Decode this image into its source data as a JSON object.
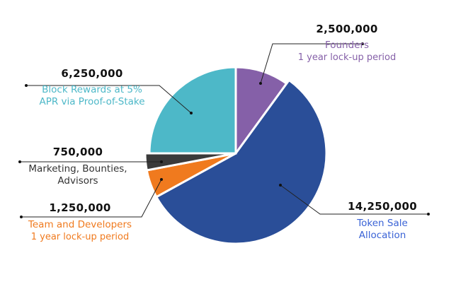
{
  "chart_data": {
    "type": "pie",
    "title": "",
    "total": 25000000,
    "slices": [
      {
        "key": "founders",
        "value": 2500000,
        "value_label": "2,500,000",
        "label": "Founders",
        "sublabel": "1 year lock-up period",
        "color": "#8560A8",
        "label_color": "#8560A8"
      },
      {
        "key": "token_sale",
        "value": 14250000,
        "value_label": "14,250,000",
        "label": "Token Sale Allocation",
        "label_lines": [
          "Token Sale",
          "Allocation"
        ],
        "color": "#2A4E98",
        "label_color": "#3A63D6"
      },
      {
        "key": "team",
        "value": 1250000,
        "value_label": "1,250,000",
        "label": "Team and Developers",
        "sublabel": "1 year lock-up period",
        "color": "#F07A1E",
        "label_color": "#F07A1E"
      },
      {
        "key": "marketing",
        "value": 750000,
        "value_label": "750,000",
        "label": "Marketing, Bounties, Advisors",
        "label_lines": [
          "Marketing, Bounties,",
          "Advisors"
        ],
        "color": "#3A3A3A",
        "label_color": "#333333"
      },
      {
        "key": "block_rewards",
        "value": 6250000,
        "value_label": "6,250,000",
        "label": "Block Rewards at 5% APR via Proof-of-Stake",
        "label_lines": [
          "Block Rewards at 5%",
          "APR via Proof-of-Stake"
        ],
        "color": "#4DB8C8",
        "label_color": "#4DB8C8"
      }
    ],
    "legend": "none (callout labels)"
  },
  "labels": {
    "founders": {
      "value": "2,500,000",
      "line1": "Founders",
      "line2": "1 year lock-up period"
    },
    "block_rewards": {
      "value": "6,250,000",
      "line1": "Block Rewards at 5%",
      "line2": "APR via Proof-of-Stake"
    },
    "marketing": {
      "value": "750,000",
      "line1": "Marketing, Bounties,",
      "line2": "Advisors"
    },
    "team": {
      "value": "1,250,000",
      "line1": "Team and Developers",
      "line2": "1 year lock-up period"
    },
    "token_sale": {
      "value": "14,250,000",
      "line1": "Token Sale",
      "line2": "Allocation"
    }
  }
}
